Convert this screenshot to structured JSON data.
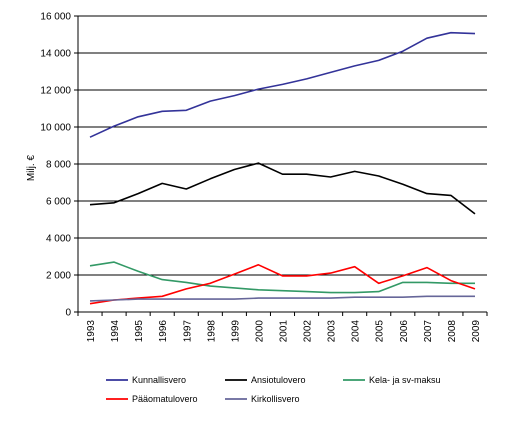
{
  "chart_data": {
    "type": "line",
    "title": "",
    "xlabel": "",
    "ylabel": "Milj. €",
    "ylim": [
      0,
      16000
    ],
    "yticks": [
      0,
      2000,
      4000,
      6000,
      8000,
      10000,
      12000,
      14000,
      16000
    ],
    "ytick_labels": [
      "0",
      "2 000",
      "4 000",
      "6 000",
      "8 000",
      "10 000",
      "12 000",
      "14 000",
      "16 000"
    ],
    "grid": true,
    "legend_position": "bottom",
    "categories": [
      "1993",
      "1994",
      "1995",
      "1996",
      "1997",
      "1998",
      "1999",
      "2000",
      "2001",
      "2002",
      "2003",
      "2004",
      "2005",
      "2006",
      "2007",
      "2008",
      "2009"
    ],
    "series": [
      {
        "name": "Kunnallisvero",
        "color": "#333399",
        "values": [
          9450,
          10050,
          10550,
          10850,
          10900,
          11400,
          11700,
          12050,
          12300,
          12600,
          12950,
          13300,
          13600,
          14100,
          14800,
          15100,
          15050
        ]
      },
      {
        "name": "Ansiotulovero",
        "color": "#000000",
        "values": [
          5800,
          5900,
          6400,
          6950,
          6650,
          7200,
          7700,
          8050,
          7450,
          7450,
          7300,
          7600,
          7350,
          6900,
          6400,
          6300,
          5300
        ]
      },
      {
        "name": "Kela- ja sv-maksu",
        "color": "#339966",
        "values": [
          2500,
          2700,
          2200,
          1750,
          1600,
          1400,
          1300,
          1200,
          1150,
          1100,
          1050,
          1050,
          1100,
          1600,
          1600,
          1550,
          1550
        ]
      },
      {
        "name": "Pääomatulovero",
        "color": "#ff0000",
        "values": [
          450,
          650,
          750,
          850,
          1250,
          1550,
          2050,
          2550,
          1950,
          1950,
          2100,
          2450,
          1550,
          1950,
          2400,
          1700,
          1250
        ]
      },
      {
        "name": "Kirkollisvero",
        "color": "#666699",
        "values": [
          600,
          650,
          700,
          700,
          700,
          700,
          700,
          750,
          750,
          750,
          750,
          800,
          800,
          800,
          850,
          850,
          850
        ]
      }
    ]
  }
}
